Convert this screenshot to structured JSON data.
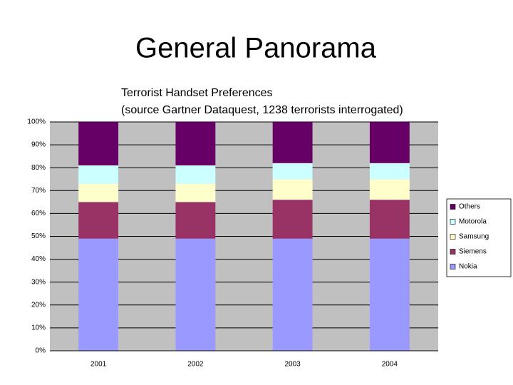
{
  "slide": {
    "title": "General Panorama"
  },
  "chart_data": {
    "type": "stacked_bar_100",
    "title": "Terrorist Handset Preferences",
    "subtitle": "(source Gartner Dataquest, 1238 terrorists interrogated)",
    "categories": [
      "2001",
      "2002",
      "2003",
      "2004"
    ],
    "series": [
      {
        "name": "Nokia",
        "color": "#9999ff",
        "values": [
          49,
          49,
          49,
          49
        ]
      },
      {
        "name": "Siemens",
        "color": "#993366",
        "values": [
          16,
          16,
          17,
          17
        ]
      },
      {
        "name": "Samsung",
        "color": "#ffffcc",
        "values": [
          8,
          8,
          9,
          9
        ]
      },
      {
        "name": "Motorola",
        "color": "#ccffff",
        "values": [
          8,
          8,
          7,
          7
        ]
      },
      {
        "name": "Others",
        "color": "#660066",
        "values": [
          19,
          19,
          18,
          18
        ]
      }
    ],
    "ylim": [
      0,
      100
    ],
    "yticks": [
      {
        "value": 0,
        "label": "0%"
      },
      {
        "value": 10,
        "label": "10%"
      },
      {
        "value": 20,
        "label": "20%"
      },
      {
        "value": 30,
        "label": "30%"
      },
      {
        "value": 40,
        "label": "40%"
      },
      {
        "value": 50,
        "label": "50%"
      },
      {
        "value": 60,
        "label": "60%"
      },
      {
        "value": 70,
        "label": "70%"
      },
      {
        "value": 80,
        "label": "80%"
      },
      {
        "value": 90,
        "label": "90%"
      },
      {
        "value": 100,
        "label": "100%"
      }
    ],
    "grid": true,
    "legend": "right",
    "plot_background": "#c0c0c0"
  }
}
